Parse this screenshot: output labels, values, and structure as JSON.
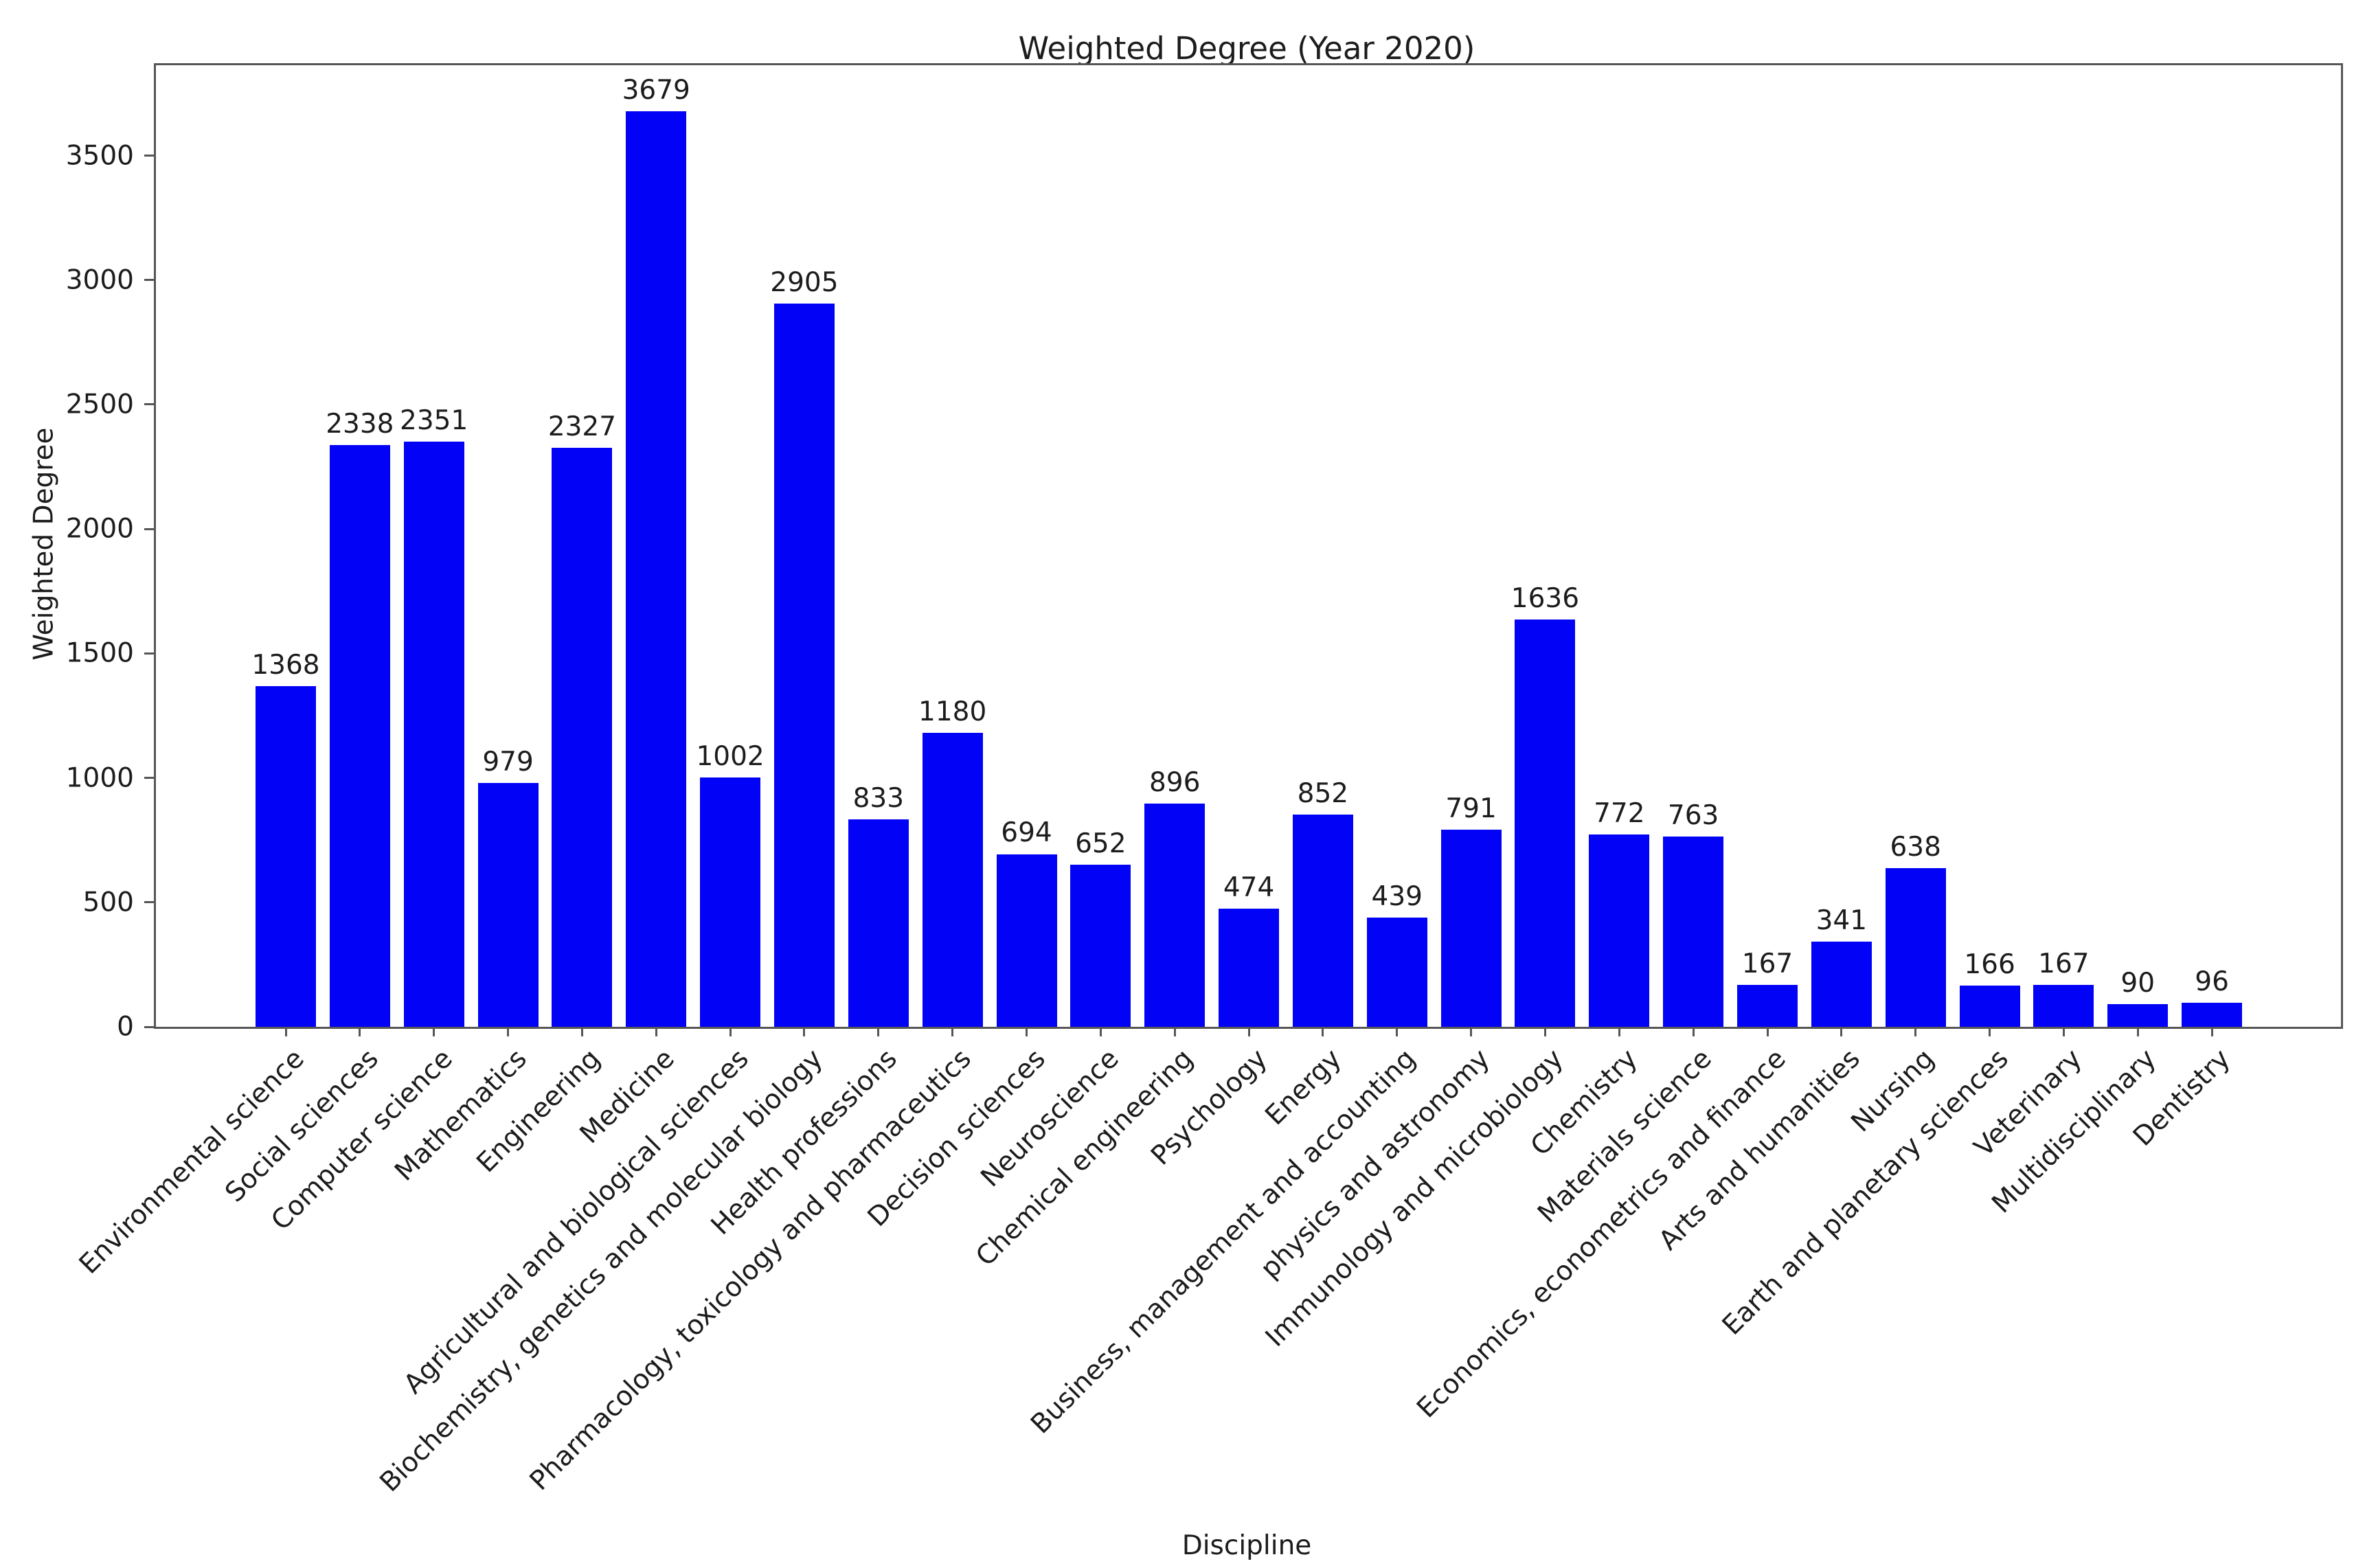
{
  "chart_data": {
    "type": "bar",
    "title": "Weighted Degree (Year 2020)",
    "xlabel": "Discipline",
    "ylabel": "Weighted Degree",
    "categories": [
      "Environmental science",
      "Social sciences",
      "Computer science",
      "Mathematics",
      "Engineering",
      "Medicine",
      "Agricultural and biological sciences",
      "Biochemistry, genetics and molecular biology",
      "Health professions",
      "Pharmacology, toxicology and pharmaceutics",
      "Decision sciences",
      "Neuroscience",
      "Chemical engineering",
      "Psychology",
      "Energy",
      "Business, management and accounting",
      "physics and astronomy",
      "Immunology and microbiology",
      "Chemistry",
      "Materials science",
      "Economics, econometrics and finance",
      "Arts and humanities",
      "Nursing",
      "Earth and planetary sciences",
      "Veterinary",
      "Multidisciplinary",
      "Dentistry"
    ],
    "values": [
      1368,
      2338,
      2351,
      979,
      2327,
      3679,
      1002,
      2905,
      833,
      1180,
      694,
      652,
      896,
      474,
      852,
      439,
      791,
      1636,
      772,
      763,
      167,
      341,
      638,
      166,
      167,
      90,
      96
    ],
    "bar_labels_shown": true,
    "ylim": [
      0,
      3863
    ],
    "yticks": [
      0,
      500,
      1000,
      1500,
      2000,
      2500,
      3000,
      3500
    ],
    "grid": false,
    "legend": null,
    "colors": {
      "bar": "#0202f7",
      "axis": "#565656",
      "text": "#1c1c1c",
      "background": "#ffffff"
    }
  }
}
